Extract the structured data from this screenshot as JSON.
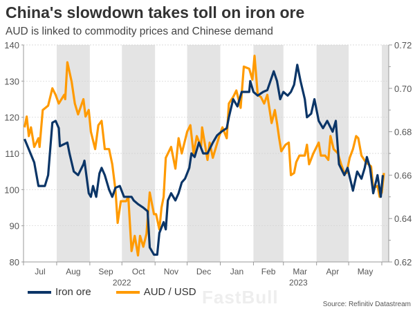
{
  "title": "China's slowdown takes toll on iron ore",
  "subtitle": "AUD is linked to commodity prices and Chinese demand",
  "source": "Source: Refinitiv Datastream",
  "watermark": "FastBull",
  "chart_data": {
    "type": "line",
    "grid": true,
    "legend_placement": "bottom-left",
    "x_range": [
      "2022-07-01",
      "2023-06-07"
    ],
    "x_tick_labels": [
      "Jul",
      "Aug",
      "Sep",
      "Oct",
      "Nov",
      "Dec",
      "Jan",
      "Feb",
      "Mar",
      "Apr",
      "May"
    ],
    "x_tick_dates": [
      "2022-07-01",
      "2022-08-01",
      "2022-09-01",
      "2022-10-01",
      "2022-11-01",
      "2022-12-01",
      "2023-01-01",
      "2023-02-01",
      "2023-03-01",
      "2023-04-01",
      "2023-05-01",
      "2023-06-01"
    ],
    "year_labels": [
      {
        "text": "2022",
        "at": "2022-10-01"
      },
      {
        "text": "2023",
        "at": "2023-03-15"
      }
    ],
    "shaded_months": [
      "2022-08",
      "2022-10",
      "2022-12",
      "2023-02",
      "2023-04",
      "2023-06"
    ],
    "y_left": {
      "range": [
        80,
        140
      ],
      "ticks": [
        "80",
        "90",
        "100",
        "110",
        "120",
        "130",
        "140"
      ]
    },
    "y_right": {
      "range": [
        0.62,
        0.72
      ],
      "ticks": [
        "0.62",
        "0.64",
        "0.66",
        "0.68",
        "0.70",
        "0.72"
      ]
    },
    "series": [
      {
        "name": "Iron ore",
        "axis": "left",
        "color": "#0b3567",
        "points": [
          [
            "2022-07-02",
            114
          ],
          [
            "2022-07-11",
            107.5
          ],
          [
            "2022-07-15",
            101
          ],
          [
            "2022-07-21",
            101
          ],
          [
            "2022-07-24",
            104
          ],
          [
            "2022-07-28",
            118.5
          ],
          [
            "2022-07-31",
            119
          ],
          [
            "2022-08-03",
            117
          ],
          [
            "2022-08-04",
            112
          ],
          [
            "2022-08-11",
            113
          ],
          [
            "2022-08-13",
            110
          ],
          [
            "2022-08-17",
            105
          ],
          [
            "2022-08-21",
            104
          ],
          [
            "2022-08-26",
            107
          ],
          [
            "2022-08-27",
            108
          ],
          [
            "2022-08-31",
            99
          ],
          [
            "2022-09-02",
            98
          ],
          [
            "2022-09-04",
            101
          ],
          [
            "2022-09-07",
            98
          ],
          [
            "2022-09-10",
            104.5
          ],
          [
            "2022-09-12",
            106
          ],
          [
            "2022-09-15",
            104
          ],
          [
            "2022-09-19",
            100
          ],
          [
            "2022-09-22",
            98
          ],
          [
            "2022-09-25",
            100.5
          ],
          [
            "2022-09-29",
            101
          ],
          [
            "2022-10-03",
            98
          ],
          [
            "2022-10-10",
            98
          ],
          [
            "2022-10-12",
            97
          ],
          [
            "2022-10-16",
            96
          ],
          [
            "2022-10-21",
            95
          ],
          [
            "2022-10-25",
            94
          ],
          [
            "2022-10-27",
            84
          ],
          [
            "2022-10-31",
            82
          ],
          [
            "2022-11-03",
            82
          ],
          [
            "2022-11-05",
            88
          ],
          [
            "2022-11-09",
            91
          ],
          [
            "2022-11-11",
            89
          ],
          [
            "2022-11-13",
            97
          ],
          [
            "2022-11-16",
            99
          ],
          [
            "2022-11-20",
            97
          ],
          [
            "2022-11-23",
            99
          ],
          [
            "2022-11-26",
            102
          ],
          [
            "2022-11-29",
            103
          ],
          [
            "2022-12-03",
            106
          ],
          [
            "2022-12-05",
            110
          ],
          [
            "2022-12-08",
            109
          ],
          [
            "2022-12-12",
            113
          ],
          [
            "2022-12-16",
            110
          ],
          [
            "2022-12-20",
            110
          ],
          [
            "2022-12-25",
            113
          ],
          [
            "2022-12-29",
            115
          ],
          [
            "2023-01-02",
            116
          ],
          [
            "2023-01-07",
            117
          ],
          [
            "2023-01-09",
            120
          ],
          [
            "2023-01-13",
            125
          ],
          [
            "2023-01-15",
            124
          ],
          [
            "2023-01-17",
            123
          ],
          [
            "2023-01-21",
            127
          ],
          [
            "2023-01-25",
            127
          ],
          [
            "2023-01-28",
            127
          ],
          [
            "2023-01-29",
            130
          ],
          [
            "2023-02-01",
            127
          ],
          [
            "2023-02-05",
            126
          ],
          [
            "2023-02-10",
            127
          ],
          [
            "2023-02-14",
            127.5
          ],
          [
            "2023-02-20",
            132.7
          ],
          [
            "2023-02-23",
            130
          ],
          [
            "2023-02-26",
            125
          ],
          [
            "2023-03-01",
            127
          ],
          [
            "2023-03-05",
            126
          ],
          [
            "2023-03-08",
            127
          ],
          [
            "2023-03-11",
            129
          ],
          [
            "2023-03-14",
            134.5
          ],
          [
            "2023-03-17",
            130
          ],
          [
            "2023-03-21",
            125
          ],
          [
            "2023-03-23",
            120
          ],
          [
            "2023-03-27",
            121
          ],
          [
            "2023-03-30",
            125
          ],
          [
            "2023-04-03",
            119
          ],
          [
            "2023-04-07",
            117
          ],
          [
            "2023-04-11",
            119
          ],
          [
            "2023-04-16",
            116
          ],
          [
            "2023-04-19",
            119
          ],
          [
            "2023-04-22",
            107
          ],
          [
            "2023-04-27",
            104
          ],
          [
            "2023-04-30",
            106
          ],
          [
            "2023-05-05",
            99.7
          ],
          [
            "2023-05-09",
            105
          ],
          [
            "2023-05-13",
            103
          ],
          [
            "2023-05-16",
            106
          ],
          [
            "2023-05-18",
            109
          ],
          [
            "2023-05-21",
            106
          ],
          [
            "2023-05-24",
            99
          ],
          [
            "2023-05-28",
            104
          ],
          [
            "2023-05-31",
            98
          ],
          [
            "2023-06-02",
            104
          ]
        ]
      },
      {
        "name": "AUD / USD",
        "axis": "right",
        "color": "#ff9a00",
        "points": [
          [
            "2022-07-02",
            0.682
          ],
          [
            "2022-07-04",
            0.687
          ],
          [
            "2022-07-06",
            0.678
          ],
          [
            "2022-07-08",
            0.682
          ],
          [
            "2022-07-11",
            0.673
          ],
          [
            "2022-07-15",
            0.677
          ],
          [
            "2022-07-16",
            0.673
          ],
          [
            "2022-07-19",
            0.69
          ],
          [
            "2022-07-24",
            0.692
          ],
          [
            "2022-07-28",
            0.7
          ],
          [
            "2022-07-31",
            0.697
          ],
          [
            "2022-08-03",
            0.693
          ],
          [
            "2022-08-08",
            0.697
          ],
          [
            "2022-08-09",
            0.695
          ],
          [
            "2022-08-11",
            0.712
          ],
          [
            "2022-08-15",
            0.703
          ],
          [
            "2022-08-18",
            0.693
          ],
          [
            "2022-08-21",
            0.688
          ],
          [
            "2022-08-26",
            0.695
          ],
          [
            "2022-08-28",
            0.687
          ],
          [
            "2022-08-31",
            0.69
          ],
          [
            "2022-09-02",
            0.68
          ],
          [
            "2022-09-06",
            0.672
          ],
          [
            "2022-09-09",
            0.683
          ],
          [
            "2022-09-12",
            0.685
          ],
          [
            "2022-09-15",
            0.672
          ],
          [
            "2022-09-19",
            0.672
          ],
          [
            "2022-09-22",
            0.665
          ],
          [
            "2022-09-25",
            0.653
          ],
          [
            "2022-09-27",
            0.638
          ],
          [
            "2022-09-30",
            0.648
          ],
          [
            "2022-10-05",
            0.648
          ],
          [
            "2022-10-07",
            0.65
          ],
          [
            "2022-10-10",
            0.625
          ],
          [
            "2022-10-13",
            0.632
          ],
          [
            "2022-10-16",
            0.623
          ],
          [
            "2022-10-18",
            0.632
          ],
          [
            "2022-10-21",
            0.627
          ],
          [
            "2022-10-24",
            0.633
          ],
          [
            "2022-10-27",
            0.652
          ],
          [
            "2022-10-31",
            0.642
          ],
          [
            "2022-11-02",
            0.642
          ],
          [
            "2022-11-05",
            0.635
          ],
          [
            "2022-11-07",
            0.645
          ],
          [
            "2022-11-09",
            0.65
          ],
          [
            "2022-11-11",
            0.668
          ],
          [
            "2022-11-16",
            0.673
          ],
          [
            "2022-11-20",
            0.663
          ],
          [
            "2022-11-23",
            0.677
          ],
          [
            "2022-11-26",
            0.67
          ],
          [
            "2022-12-01",
            0.68
          ],
          [
            "2022-12-04",
            0.683
          ],
          [
            "2022-12-07",
            0.67
          ],
          [
            "2022-12-10",
            0.678
          ],
          [
            "2022-12-14",
            0.673
          ],
          [
            "2022-12-15",
            0.682
          ],
          [
            "2022-12-18",
            0.673
          ],
          [
            "2022-12-20",
            0.667
          ],
          [
            "2022-12-22",
            0.675
          ],
          [
            "2022-12-25",
            0.668
          ],
          [
            "2022-12-31",
            0.678
          ],
          [
            "2023-01-03",
            0.682
          ],
          [
            "2023-01-07",
            0.677
          ],
          [
            "2023-01-09",
            0.693
          ],
          [
            "2023-01-13",
            0.696
          ],
          [
            "2023-01-16",
            0.699
          ],
          [
            "2023-01-20",
            0.691
          ],
          [
            "2023-01-23",
            0.71
          ],
          [
            "2023-01-28",
            0.709
          ],
          [
            "2023-01-31",
            0.704
          ],
          [
            "2023-02-02",
            0.715
          ],
          [
            "2023-02-05",
            0.697
          ],
          [
            "2023-02-08",
            0.696
          ],
          [
            "2023-02-11",
            0.693
          ],
          [
            "2023-02-14",
            0.697
          ],
          [
            "2023-02-18",
            0.684
          ],
          [
            "2023-02-21",
            0.69
          ],
          [
            "2023-02-23",
            0.684
          ],
          [
            "2023-02-25",
            0.677
          ],
          [
            "2023-02-27",
            0.671
          ],
          [
            "2023-03-03",
            0.674
          ],
          [
            "2023-03-06",
            0.675
          ],
          [
            "2023-03-08",
            0.66
          ],
          [
            "2023-03-11",
            0.661
          ],
          [
            "2023-03-13",
            0.666
          ],
          [
            "2023-03-16",
            0.669
          ],
          [
            "2023-03-21",
            0.669
          ],
          [
            "2023-03-23",
            0.674
          ],
          [
            "2023-03-25",
            0.665
          ],
          [
            "2023-03-29",
            0.67
          ],
          [
            "2023-04-03",
            0.675
          ],
          [
            "2023-04-05",
            0.669
          ],
          [
            "2023-04-09",
            0.669
          ],
          [
            "2023-04-12",
            0.667
          ],
          [
            "2023-04-14",
            0.678
          ],
          [
            "2023-04-17",
            0.672
          ],
          [
            "2023-04-21",
            0.67
          ],
          [
            "2023-04-24",
            0.665
          ],
          [
            "2023-04-27",
            0.661
          ],
          [
            "2023-04-29",
            0.661
          ],
          [
            "2023-05-02",
            0.668
          ],
          [
            "2023-05-05",
            0.672
          ],
          [
            "2023-05-08",
            0.678
          ],
          [
            "2023-05-10",
            0.677
          ],
          [
            "2023-05-13",
            0.669
          ],
          [
            "2023-05-17",
            0.666
          ],
          [
            "2023-05-22",
            0.664
          ],
          [
            "2023-05-24",
            0.654
          ],
          [
            "2023-05-28",
            0.655
          ],
          [
            "2023-05-30",
            0.65
          ],
          [
            "2023-06-01",
            0.652
          ],
          [
            "2023-06-03",
            0.661
          ]
        ]
      }
    ]
  }
}
